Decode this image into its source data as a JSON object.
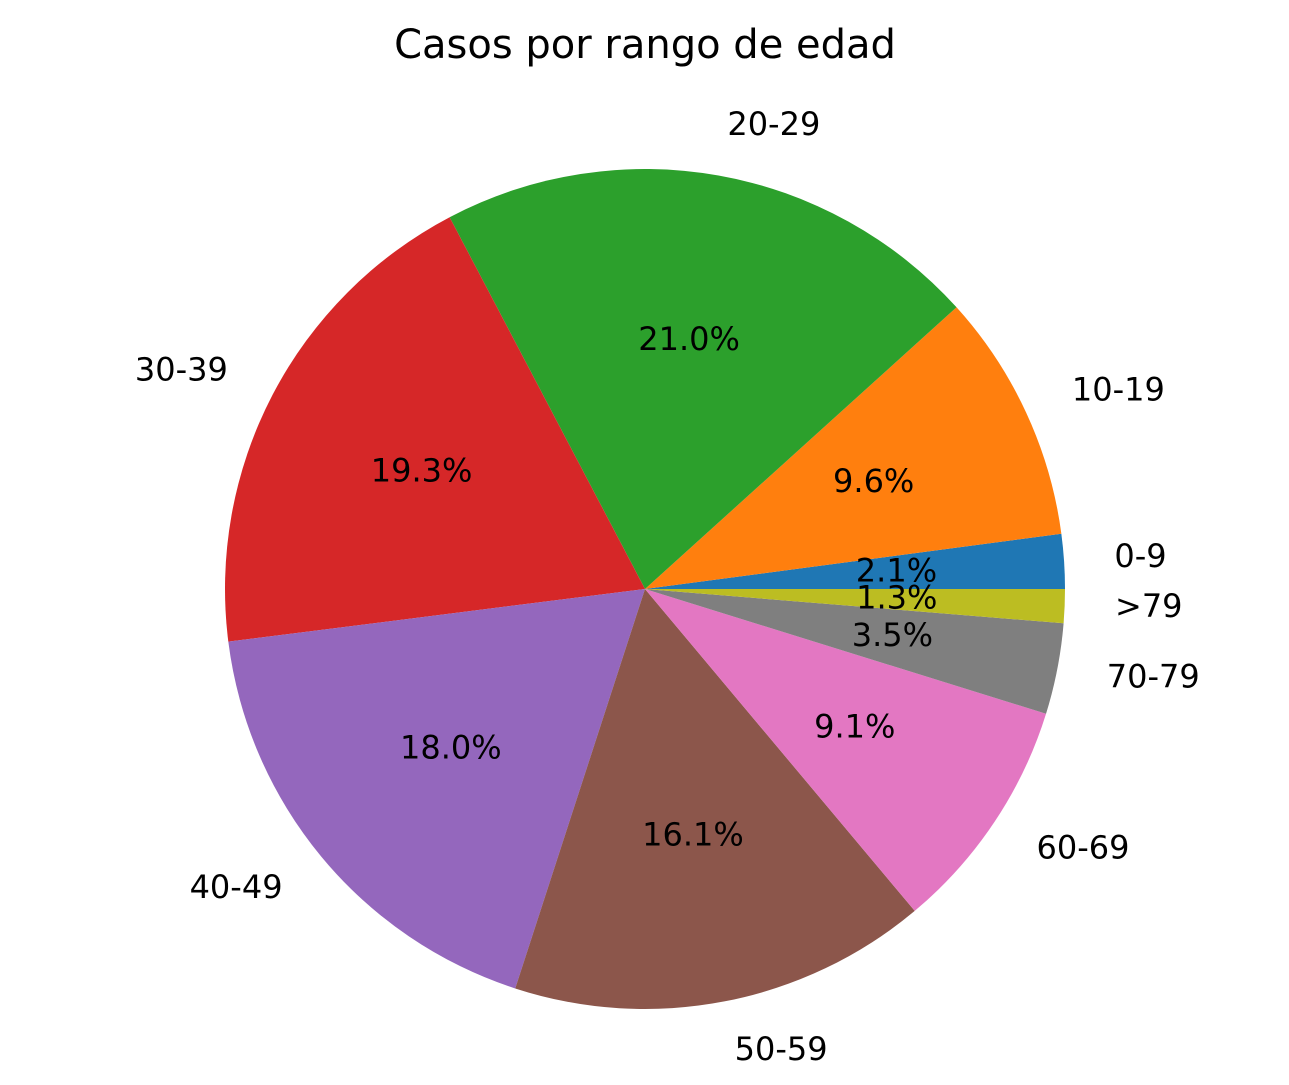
{
  "chart_data": {
    "type": "pie",
    "title": "Casos por rango de edad",
    "start_angle_deg": 0,
    "direction": "counterclockwise",
    "slices": [
      {
        "label": "0-9",
        "value": 2.1,
        "pct_label": "2.1%",
        "color": "#1f77b4"
      },
      {
        "label": "10-19",
        "value": 9.6,
        "pct_label": "9.6%",
        "color": "#ff7f0e"
      },
      {
        "label": "20-29",
        "value": 21.0,
        "pct_label": "21.0%",
        "color": "#2ca02c"
      },
      {
        "label": "30-39",
        "value": 19.3,
        "pct_label": "19.3%",
        "color": "#d62728"
      },
      {
        "label": "40-49",
        "value": 18.0,
        "pct_label": "18.0%",
        "color": "#9467bd"
      },
      {
        "label": "50-59",
        "value": 16.1,
        "pct_label": "16.1%",
        "color": "#8c564b"
      },
      {
        "label": "60-69",
        "value": 9.1,
        "pct_label": "9.1%",
        "color": "#e377c2"
      },
      {
        "label": "70-79",
        "value": 3.5,
        "pct_label": "3.5%",
        "color": "#7f7f7f"
      },
      {
        "label": ">79",
        "value": 1.3,
        "pct_label": "1.3%",
        "color": "#bcbd22"
      }
    ]
  }
}
